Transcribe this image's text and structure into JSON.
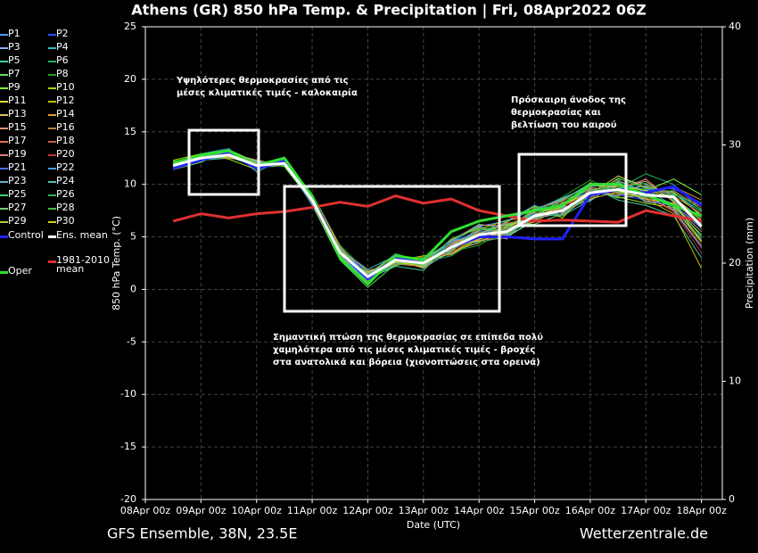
{
  "chart_data": {
    "type": "line",
    "title": "Athens  (GR)  850 hPa Temp. & Precipitation | Fri, 08Apr2022 06Z",
    "y_label": "850 hPa Temp. (°C)",
    "y2_label": "Precipitation (mm)",
    "x_label": "Date (UTC)",
    "footer_left": "GFS Ensemble, 38N, 23.5E",
    "footer_right": "Wetterzentrale.de",
    "annotations": [
      "Υψηλότερες θερμοκρασίες από τις\nμέσες κλιματικές τιμές - καλοκαιρία",
      "Πρόσκαιρη άνοδος της\nθερμοκρασίας και\nβελτίωση του καιρού",
      "Σημαντική πτώση της θερμοκρασίας σε επίπεδα πολύ\nχαμηλότερα από τις μέσες κλιματικές τιμές - βροχές\nστα ανατολικά και βόρεια (χιονοπτώσεις στα ορεινά)"
    ],
    "xlim": [
      0,
      249
    ],
    "xticks": [
      {
        "value": 0,
        "label": "08Apr 00z"
      },
      {
        "value": 24,
        "label": "09Apr 00z"
      },
      {
        "value": 48,
        "label": "10Apr 00z"
      },
      {
        "value": 72,
        "label": "11Apr 00z"
      },
      {
        "value": 96,
        "label": "12Apr 00z"
      },
      {
        "value": 120,
        "label": "13Apr 00z"
      },
      {
        "value": 144,
        "label": "14Apr 00z"
      },
      {
        "value": 168,
        "label": "15Apr 00z"
      },
      {
        "value": 192,
        "label": "16Apr 00z"
      },
      {
        "value": 216,
        "label": "17Apr 00z"
      },
      {
        "value": 240,
        "label": "18Apr 00z"
      }
    ],
    "ylim": [
      -20,
      25
    ],
    "yticks": [
      -20,
      -15,
      -10,
      -5,
      0,
      5,
      10,
      15,
      20,
      25
    ],
    "y2lim": [
      0,
      40
    ],
    "y2ticks": [
      0,
      10,
      20,
      30,
      40
    ],
    "grid": true,
    "x": [
      12,
      24,
      36,
      48,
      60,
      72,
      84,
      96,
      108,
      120,
      132,
      144,
      156,
      168,
      180,
      192,
      204,
      216,
      228,
      240
    ],
    "series": [
      {
        "name": "P1",
        "color": "#4aa0ff",
        "linewidth": 1,
        "values": [
          11.5,
          12.8,
          13.2,
          11.5,
          12.3,
          8,
          3,
          0.5,
          3,
          2,
          4.5,
          6,
          6.5,
          8,
          7,
          9,
          10,
          9.5,
          8,
          6
        ]
      },
      {
        "name": "P2",
        "color": "#3050ff",
        "linewidth": 1,
        "values": [
          12,
          12.2,
          13,
          12,
          11.8,
          9,
          4,
          1.5,
          2.5,
          3,
          3.5,
          4.5,
          5,
          6.5,
          8,
          9.5,
          9,
          8.5,
          9.5,
          7
        ]
      },
      {
        "name": "P3",
        "color": "#8fa8ff",
        "linewidth": 1,
        "values": [
          11.8,
          12.5,
          12.6,
          11.8,
          12.1,
          8.6,
          3.2,
          0.8,
          2.6,
          2.2,
          4.2,
          5.5,
          4.8,
          7.5,
          8.5,
          10,
          9.8,
          9,
          7.5,
          4
        ]
      },
      {
        "name": "P4",
        "color": "#30c0c0",
        "linewidth": 1,
        "values": [
          11.6,
          12.9,
          13.4,
          11.2,
          12.4,
          8.2,
          3.8,
          1.9,
          3.2,
          2.8,
          3.8,
          5,
          6,
          7.2,
          7,
          8.5,
          10.5,
          10,
          9,
          8
        ]
      },
      {
        "name": "P5",
        "color": "#40d0a0",
        "linewidth": 1,
        "values": [
          12.1,
          12.3,
          12.5,
          12.2,
          11.9,
          8.8,
          3.4,
          1,
          2.2,
          1.8,
          4.6,
          6.2,
          5.8,
          6.8,
          7.8,
          9.8,
          8.5,
          8,
          7,
          3
        ]
      },
      {
        "name": "P6",
        "color": "#20b060",
        "linewidth": 1,
        "values": [
          11.9,
          12.6,
          13.1,
          11.6,
          12.2,
          8.4,
          3.6,
          1.4,
          3.4,
          2.6,
          3.2,
          4.8,
          5.2,
          7.8,
          8.2,
          9,
          9.6,
          11,
          10,
          7.5
        ]
      },
      {
        "name": "P7",
        "color": "#60e060",
        "linewidth": 1,
        "values": [
          11.7,
          12.4,
          12.9,
          11.9,
          12,
          8.1,
          2.8,
          0.2,
          2.4,
          2.9,
          4.4,
          5.6,
          6.2,
          6.2,
          7.2,
          9.4,
          10.2,
          8.8,
          8.2,
          5
        ]
      },
      {
        "name": "P8",
        "color": "#20a020",
        "linewidth": 1,
        "values": [
          12.2,
          12.7,
          12.7,
          11.7,
          12.3,
          9.1,
          4.2,
          1.6,
          2.9,
          2.4,
          3.6,
          4.2,
          5.6,
          7.4,
          8.8,
          10.4,
          9.2,
          9.6,
          8.6,
          6.5
        ]
      },
      {
        "name": "P9",
        "color": "#80ff40",
        "linewidth": 1,
        "values": [
          11.4,
          12.1,
          13.3,
          12.1,
          11.7,
          8.3,
          3.1,
          0.9,
          3.1,
          2.1,
          4.8,
          5.9,
          5,
          6.6,
          7.6,
          8.8,
          9.9,
          9.4,
          10.5,
          9
        ]
      },
      {
        "name": "P10",
        "color": "#a0e000",
        "linewidth": 1,
        "values": [
          12.3,
          12.9,
          12.4,
          11.4,
          12.5,
          8.9,
          3.9,
          1.3,
          2.7,
          3.2,
          3.4,
          5.1,
          6.4,
          7.9,
          6.8,
          9.6,
          8.8,
          8.2,
          7.8,
          4.5
        ]
      },
      {
        "name": "P11",
        "color": "#e0e040",
        "linewidth": 1,
        "values": [
          11.8,
          12.2,
          13,
          12.3,
          11.8,
          8.7,
          3.3,
          1.1,
          2.3,
          2.7,
          4.1,
          4.6,
          5.4,
          7.1,
          8.1,
          9.1,
          10.8,
          9.7,
          9.2,
          7
        ]
      },
      {
        "name": "P12",
        "color": "#c0c000",
        "linewidth": 1,
        "values": [
          12,
          12.6,
          12.8,
          11.5,
          12.1,
          8.2,
          3.7,
          0.6,
          3.3,
          2.3,
          3.9,
          5.7,
          6.6,
          6.9,
          7.4,
          8.6,
          9.3,
          8.6,
          7.2,
          2
        ]
      },
      {
        "name": "P13",
        "color": "#e0c060",
        "linewidth": 1,
        "values": [
          11.6,
          12.8,
          13.2,
          11.9,
          12.4,
          8.5,
          2.9,
          1.7,
          2.5,
          2.9,
          4.3,
          5.3,
          5.1,
          7.6,
          8.6,
          9.9,
          9.7,
          10.3,
          8.4,
          6
        ]
      },
      {
        "name": "P14",
        "color": "#e0a020",
        "linewidth": 1,
        "values": [
          12.1,
          12.4,
          12.6,
          11.8,
          11.9,
          9,
          4.1,
          1.2,
          2.9,
          2,
          3.7,
          4.4,
          5.9,
          6.4,
          7.9,
          9.3,
          9,
          9.1,
          9.8,
          8.5
        ]
      },
      {
        "name": "P15",
        "color": "#e09070",
        "linewidth": 1,
        "values": [
          11.9,
          12.5,
          13.1,
          11.7,
          12.2,
          8.3,
          3.5,
          0.4,
          3,
          2.6,
          4.7,
          6.1,
          6.1,
          7.3,
          7.1,
          8.9,
          10.1,
          8.4,
          8,
          5.5
        ]
      },
      {
        "name": "P16",
        "color": "#c08040",
        "linewidth": 1,
        "values": [
          11.7,
          12.7,
          12.9,
          12,
          12,
          8.6,
          3.4,
          1.5,
          2.6,
          3.1,
          3.3,
          4.9,
          5.3,
          7.7,
          8.4,
          9.7,
          9.4,
          9.9,
          8.9,
          7.2
        ]
      },
      {
        "name": "P17",
        "color": "#e07050",
        "linewidth": 1,
        "values": [
          12.2,
          12.3,
          12.7,
          11.6,
          12.3,
          8.8,
          3.6,
          1,
          2.8,
          2.4,
          4.4,
          5.4,
          6.3,
          6.7,
          7.7,
          10.2,
          9.1,
          8.7,
          7.6,
          4.2
        ]
      },
      {
        "name": "P18",
        "color": "#c06040",
        "linewidth": 1,
        "values": [
          11.5,
          12.6,
          13.2,
          11.9,
          11.8,
          8.4,
          3,
          0.7,
          3.2,
          2.8,
          3.8,
          5.8,
          5.7,
          7,
          8.3,
          9,
          10.4,
          9.2,
          9.4,
          7.8
        ]
      },
      {
        "name": "P19",
        "color": "#e08080",
        "linewidth": 1,
        "values": [
          12,
          12.8,
          12.5,
          12.1,
          12.2,
          8.7,
          3.8,
          1.8,
          2.4,
          2.2,
          4.2,
          4.7,
          4.9,
          7.8,
          7.3,
          9.5,
          9.5,
          10.5,
          8.3,
          6.2
        ]
      },
      {
        "name": "P20",
        "color": "#c03030",
        "linewidth": 1,
        "values": [
          11.8,
          12.3,
          13,
          11.5,
          12.1,
          8.2,
          3.3,
          1.1,
          3.1,
          2.7,
          3.5,
          5.2,
          6,
          6.5,
          8,
          8.7,
          9.8,
          8.9,
          7.4,
          3.5
        ]
      },
      {
        "name": "P21",
        "color": "#4070e0",
        "linewidth": 1,
        "values": [
          11.6,
          12.5,
          12.8,
          11.8,
          12.4,
          8.9,
          3.7,
          1.4,
          2.7,
          2.5,
          4.5,
          5.5,
          5.5,
          7.2,
          7.5,
          9.2,
          8.9,
          9.5,
          9.6,
          8.2
        ]
      },
      {
        "name": "P22",
        "color": "#40a0e0",
        "linewidth": 1,
        "values": [
          12.1,
          12.7,
          13.1,
          12.2,
          11.9,
          8.5,
          3.1,
          0.9,
          2.5,
          3,
          4,
          4.9,
          6.5,
          7.6,
          8.7,
          9.8,
          10,
          8.3,
          8.1,
          5.8
        ]
      },
      {
        "name": "P23",
        "color": "#60b0d0",
        "linewidth": 1,
        "values": [
          11.9,
          12.4,
          12.6,
          11.7,
          12,
          8.1,
          4,
          1.3,
          3.3,
          2.1,
          3.6,
          6,
          5.2,
          6.8,
          7.2,
          9.1,
          9.6,
          9.8,
          8.7,
          6.8
        ]
      },
      {
        "name": "P24",
        "color": "#50c0b0",
        "linewidth": 1,
        "values": [
          11.7,
          12.6,
          13.3,
          11.9,
          12.3,
          8.7,
          3.5,
          0.6,
          2.9,
          2.9,
          4.6,
          5.1,
          5.8,
          7.4,
          7.8,
          8.4,
          10.3,
          9.3,
          7.7,
          4.8
        ]
      },
      {
        "name": "P25",
        "color": "#40d080",
        "linewidth": 1,
        "values": [
          12.2,
          12.2,
          12.9,
          11.6,
          11.8,
          8.4,
          3.2,
          1.6,
          2.6,
          2.3,
          3.9,
          5.6,
          6.1,
          7,
          8.5,
          10.1,
          9.2,
          8.8,
          9.1,
          7.4
        ]
      },
      {
        "name": "P26",
        "color": "#30b050",
        "linewidth": 1,
        "values": [
          11.5,
          12.9,
          12.7,
          12,
          12.2,
          8.6,
          3.9,
          1,
          3,
          2.6,
          4.3,
          4.5,
          5,
          7.5,
          7,
          9.4,
          9.7,
          10.1,
          8.5,
          6.3
        ]
      },
      {
        "name": "P27",
        "color": "#70d070",
        "linewidth": 1,
        "values": [
          12,
          12.5,
          13,
          11.8,
          12.1,
          8.3,
          3.4,
          1.2,
          2.8,
          2.8,
          3.7,
          5.3,
          6.2,
          6.6,
          8.2,
          9.6,
          8.7,
          9,
          7.9,
          5.2
        ]
      },
      {
        "name": "P28",
        "color": "#40c040",
        "linewidth": 1,
        "values": [
          11.8,
          12.7,
          12.8,
          11.5,
          12.4,
          9,
          3.6,
          0.8,
          2.4,
          2.4,
          4.8,
          5.8,
          5.6,
          7.8,
          7.6,
          8.8,
          10.6,
          9.6,
          9.3,
          7.6
        ]
      },
      {
        "name": "P29",
        "color": "#b0d040",
        "linewidth": 1,
        "values": [
          11.7,
          12.3,
          13.2,
          12.1,
          11.9,
          8.5,
          3,
          1.5,
          3.2,
          2.7,
          3.4,
          4.8,
          5.4,
          7.1,
          8.1,
          9.3,
          9.4,
          8.6,
          8.2,
          4.6
        ]
      },
      {
        "name": "P30",
        "color": "#d0d020",
        "linewidth": 1,
        "values": [
          12.1,
          12.6,
          12.6,
          11.9,
          12,
          8.8,
          3.8,
          1.1,
          2.6,
          2.2,
          4.1,
          5,
          6,
          6.9,
          7.9,
          9.9,
          9.9,
          9.4,
          8.8,
          6.6
        ]
      },
      {
        "name": "Control",
        "color": "#2020ff",
        "linewidth": 3,
        "values": [
          11.5,
          12.3,
          13,
          11.5,
          12.2,
          8.8,
          3.5,
          1,
          3,
          2.5,
          4,
          5,
          5,
          4.8,
          4.8,
          9,
          9.5,
          9.2,
          9.8,
          8
        ]
      },
      {
        "name": "Ens. mean",
        "color": "#ffffff",
        "linewidth": 3,
        "values": [
          11.8,
          12.5,
          12.8,
          11.8,
          12,
          8.5,
          3.5,
          1.2,
          2.8,
          2.5,
          4,
          5.2,
          5.5,
          7,
          7.5,
          9.2,
          9.5,
          9,
          8.8,
          6
        ]
      },
      {
        "name": "1981-2010\nmean",
        "color": "#e03030",
        "linewidth": 3,
        "values": [
          6.5,
          7.2,
          6.8,
          7.2,
          7.4,
          7.8,
          8.3,
          7.9,
          8.9,
          8.2,
          8.6,
          7.5,
          7,
          6.5,
          6.6,
          6.5,
          6.4,
          7.5,
          7,
          6.5
        ]
      },
      {
        "name": "Oper",
        "color": "#30e030",
        "linewidth": 3,
        "values": [
          12,
          12.8,
          13.2,
          11.8,
          12.5,
          8.8,
          3,
          0.5,
          3.2,
          2.8,
          5.5,
          6.5,
          7,
          7.5,
          8,
          10,
          10,
          9,
          8,
          7
        ]
      }
    ]
  }
}
